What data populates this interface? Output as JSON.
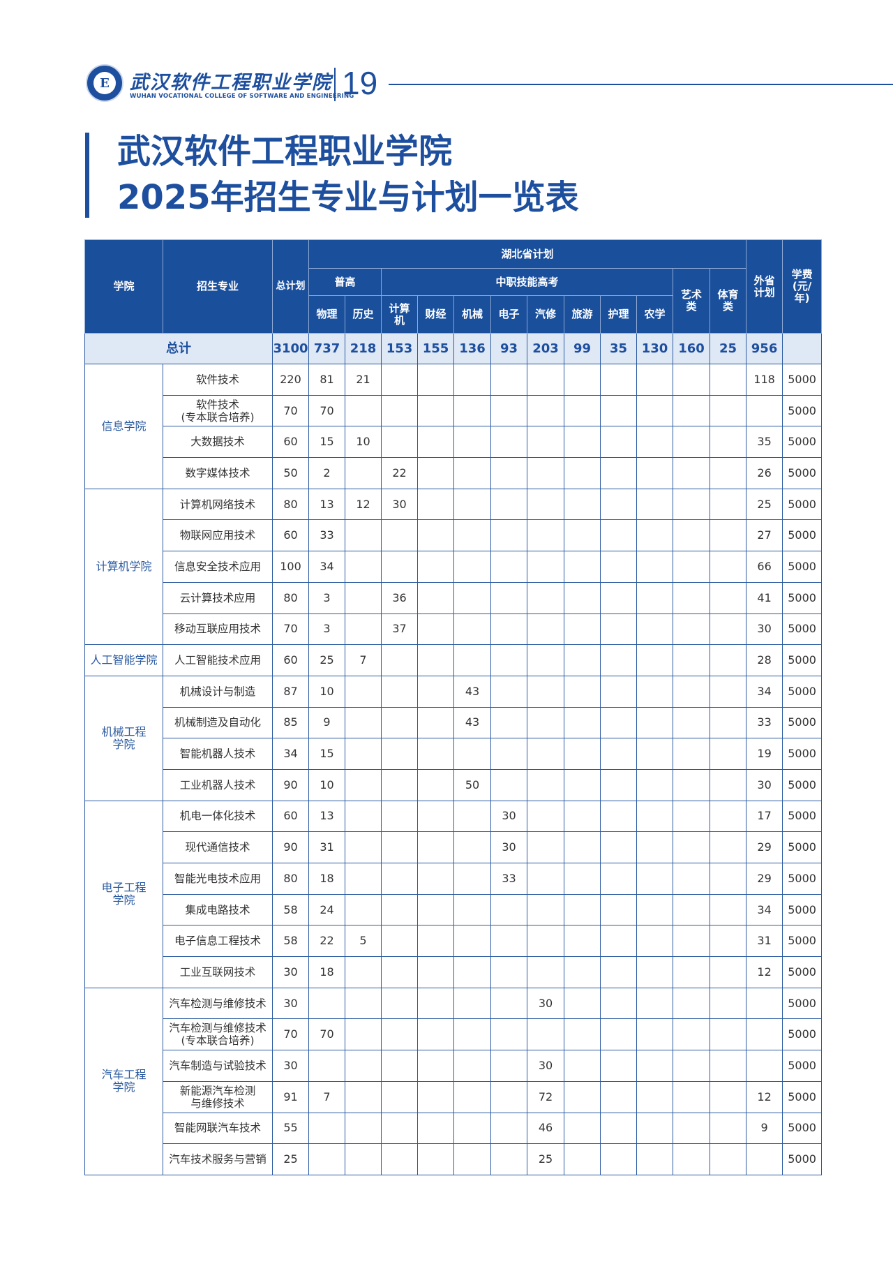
{
  "header": {
    "logo_cn": "武汉软件工程职业学院",
    "logo_en": "WUHAN VOCATIONAL COLLEGE OF SOFTWARE AND ENGINEERING",
    "page_number": "19"
  },
  "title": {
    "line1": "武汉软件工程职业学院",
    "line2": "2025年招生专业与计划一览表"
  },
  "colors": {
    "brand": "#1d4f9e",
    "header_bg": "#1a4f9c",
    "total_bg": "#dfe8f5"
  },
  "table": {
    "headers": {
      "college": "学院",
      "major": "招生专业",
      "total_plan": "总计划",
      "hubei_plan": "湖北省计划",
      "general": "普高",
      "vocational": "中职技能高考",
      "art": "艺术类",
      "sports": "体育类",
      "out_of_province": "外省计划",
      "tuition": "学费(元/年)",
      "subjects": [
        "物理",
        "历史",
        "计算机",
        "财经",
        "机械",
        "电子",
        "汽修",
        "旅游",
        "护理",
        "农学"
      ]
    },
    "total_row": {
      "label": "总计",
      "values": [
        "3100",
        "737",
        "218",
        "153",
        "155",
        "136",
        "93",
        "203",
        "99",
        "35",
        "130",
        "160",
        "25",
        "956",
        ""
      ]
    },
    "groups": [
      {
        "college": "信息学院",
        "rows": [
          {
            "major": "软件技术",
            "values": [
              "220",
              "81",
              "21",
              "",
              "",
              "",
              "",
              "",
              "",
              "",
              "",
              "",
              "",
              "118",
              "5000"
            ]
          },
          {
            "major": "软件技术\n(专本联合培养)",
            "values": [
              "70",
              "70",
              "",
              "",
              "",
              "",
              "",
              "",
              "",
              "",
              "",
              "",
              "",
              "",
              "5000"
            ]
          },
          {
            "major": "大数据技术",
            "values": [
              "60",
              "15",
              "10",
              "",
              "",
              "",
              "",
              "",
              "",
              "",
              "",
              "",
              "",
              "35",
              "5000"
            ]
          },
          {
            "major": "数字媒体技术",
            "values": [
              "50",
              "2",
              "",
              "22",
              "",
              "",
              "",
              "",
              "",
              "",
              "",
              "",
              "",
              "26",
              "5000"
            ]
          }
        ]
      },
      {
        "college": "计算机学院",
        "rows": [
          {
            "major": "计算机网络技术",
            "values": [
              "80",
              "13",
              "12",
              "30",
              "",
              "",
              "",
              "",
              "",
              "",
              "",
              "",
              "",
              "25",
              "5000"
            ]
          },
          {
            "major": "物联网应用技术",
            "values": [
              "60",
              "33",
              "",
              "",
              "",
              "",
              "",
              "",
              "",
              "",
              "",
              "",
              "",
              "27",
              "5000"
            ]
          },
          {
            "major": "信息安全技术应用",
            "values": [
              "100",
              "34",
              "",
              "",
              "",
              "",
              "",
              "",
              "",
              "",
              "",
              "",
              "",
              "66",
              "5000"
            ]
          },
          {
            "major": "云计算技术应用",
            "values": [
              "80",
              "3",
              "",
              "36",
              "",
              "",
              "",
              "",
              "",
              "",
              "",
              "",
              "",
              "41",
              "5000"
            ]
          },
          {
            "major": "移动互联应用技术",
            "values": [
              "70",
              "3",
              "",
              "37",
              "",
              "",
              "",
              "",
              "",
              "",
              "",
              "",
              "",
              "30",
              "5000"
            ]
          }
        ]
      },
      {
        "college": "人工智能学院",
        "rows": [
          {
            "major": "人工智能技术应用",
            "values": [
              "60",
              "25",
              "7",
              "",
              "",
              "",
              "",
              "",
              "",
              "",
              "",
              "",
              "",
              "28",
              "5000"
            ]
          }
        ]
      },
      {
        "college": "机械工程\n学院",
        "rows": [
          {
            "major": "机械设计与制造",
            "values": [
              "87",
              "10",
              "",
              "",
              "",
              "43",
              "",
              "",
              "",
              "",
              "",
              "",
              "",
              "34",
              "5000"
            ]
          },
          {
            "major": "机械制造及自动化",
            "values": [
              "85",
              "9",
              "",
              "",
              "",
              "43",
              "",
              "",
              "",
              "",
              "",
              "",
              "",
              "33",
              "5000"
            ]
          },
          {
            "major": "智能机器人技术",
            "values": [
              "34",
              "15",
              "",
              "",
              "",
              "",
              "",
              "",
              "",
              "",
              "",
              "",
              "",
              "19",
              "5000"
            ]
          },
          {
            "major": "工业机器人技术",
            "values": [
              "90",
              "10",
              "",
              "",
              "",
              "50",
              "",
              "",
              "",
              "",
              "",
              "",
              "",
              "30",
              "5000"
            ]
          }
        ]
      },
      {
        "college": "电子工程\n学院",
        "rows": [
          {
            "major": "机电一体化技术",
            "values": [
              "60",
              "13",
              "",
              "",
              "",
              "",
              "30",
              "",
              "",
              "",
              "",
              "",
              "",
              "17",
              "5000"
            ]
          },
          {
            "major": "现代通信技术",
            "values": [
              "90",
              "31",
              "",
              "",
              "",
              "",
              "30",
              "",
              "",
              "",
              "",
              "",
              "",
              "29",
              "5000"
            ]
          },
          {
            "major": "智能光电技术应用",
            "values": [
              "80",
              "18",
              "",
              "",
              "",
              "",
              "33",
              "",
              "",
              "",
              "",
              "",
              "",
              "29",
              "5000"
            ]
          },
          {
            "major": "集成电路技术",
            "values": [
              "58",
              "24",
              "",
              "",
              "",
              "",
              "",
              "",
              "",
              "",
              "",
              "",
              "",
              "34",
              "5000"
            ]
          },
          {
            "major": "电子信息工程技术",
            "values": [
              "58",
              "22",
              "5",
              "",
              "",
              "",
              "",
              "",
              "",
              "",
              "",
              "",
              "",
              "31",
              "5000"
            ]
          },
          {
            "major": "工业互联网技术",
            "values": [
              "30",
              "18",
              "",
              "",
              "",
              "",
              "",
              "",
              "",
              "",
              "",
              "",
              "",
              "12",
              "5000"
            ]
          }
        ]
      },
      {
        "college": "汽车工程\n学院",
        "rows": [
          {
            "major": "汽车检测与维修技术",
            "values": [
              "30",
              "",
              "",
              "",
              "",
              "",
              "",
              "30",
              "",
              "",
              "",
              "",
              "",
              "",
              "5000"
            ]
          },
          {
            "major": "汽车检测与维修技术\n(专本联合培养)",
            "values": [
              "70",
              "70",
              "",
              "",
              "",
              "",
              "",
              "",
              "",
              "",
              "",
              "",
              "",
              "",
              "5000"
            ]
          },
          {
            "major": "汽车制造与试验技术",
            "values": [
              "30",
              "",
              "",
              "",
              "",
              "",
              "",
              "30",
              "",
              "",
              "",
              "",
              "",
              "",
              "5000"
            ]
          },
          {
            "major": "新能源汽车检测\n与维修技术",
            "values": [
              "91",
              "7",
              "",
              "",
              "",
              "",
              "",
              "72",
              "",
              "",
              "",
              "",
              "",
              "12",
              "5000"
            ]
          },
          {
            "major": "智能网联汽车技术",
            "values": [
              "55",
              "",
              "",
              "",
              "",
              "",
              "",
              "46",
              "",
              "",
              "",
              "",
              "",
              "9",
              "5000"
            ]
          },
          {
            "major": "汽车技术服务与营销",
            "values": [
              "25",
              "",
              "",
              "",
              "",
              "",
              "",
              "25",
              "",
              "",
              "",
              "",
              "",
              "",
              "5000"
            ]
          }
        ]
      }
    ]
  }
}
